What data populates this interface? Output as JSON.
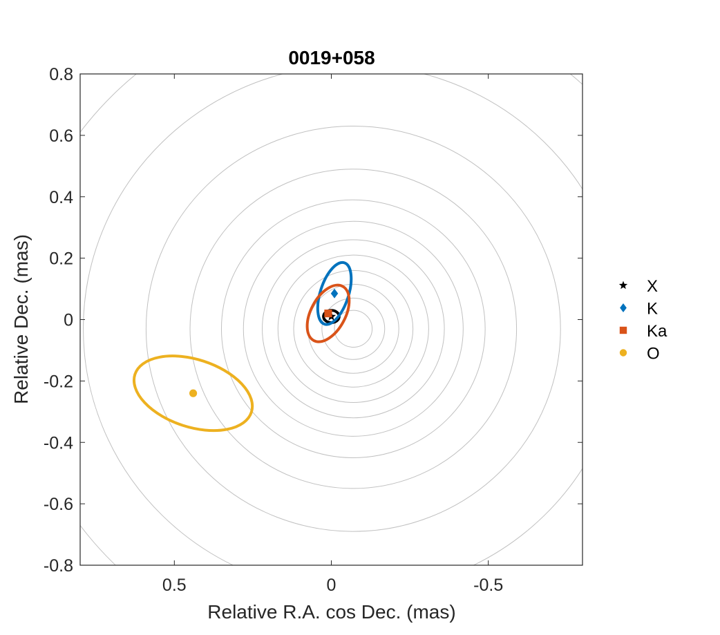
{
  "chart_data": {
    "type": "scatter",
    "title": "0019+058",
    "xlabel": "Relative R.A. cos Dec. (mas)",
    "ylabel": "Relative Dec. (mas)",
    "xlim": [
      0.8,
      -0.8
    ],
    "ylim": [
      -0.8,
      0.8
    ],
    "x_reversed": true,
    "x_ticks": [
      0.5,
      0,
      -0.5
    ],
    "x_tick_labels": [
      "0.5",
      "0",
      "-0.5"
    ],
    "y_ticks": [
      0.8,
      0.6,
      0.4,
      0.2,
      0,
      -0.2,
      -0.4,
      -0.6,
      -0.8
    ],
    "y_tick_labels": [
      "0.8",
      "0.6",
      "0.4",
      "0.2",
      "0",
      "-0.2",
      "-0.4",
      "-0.6",
      "-0.8"
    ],
    "grid": false,
    "legend_position": "outside-right",
    "contours": {
      "color": "#c0c0c0",
      "center": [
        -0.07,
        -0.03
      ],
      "rx": [
        0.06,
        0.1,
        0.145,
        0.19,
        0.24,
        0.29,
        0.35,
        0.42,
        0.52,
        0.66,
        0.86,
        1.08
      ],
      "ry": [
        0.06,
        0.1,
        0.145,
        0.19,
        0.24,
        0.29,
        0.35,
        0.42,
        0.52,
        0.66,
        0.86,
        1.08
      ]
    },
    "series": [
      {
        "name": "X",
        "marker": "star",
        "color": "#000000",
        "x": 0.0,
        "y": 0.01,
        "ellipse": {
          "rx": 0.025,
          "ry": 0.02,
          "angle_deg": 0
        }
      },
      {
        "name": "K",
        "marker": "diamond",
        "color": "#0072bd",
        "x": -0.01,
        "y": 0.085,
        "ellipse": {
          "rx": 0.045,
          "ry": 0.105,
          "angle_deg": 18
        }
      },
      {
        "name": "Ka",
        "marker": "square",
        "color": "#d95319",
        "x": 0.01,
        "y": 0.02,
        "ellipse": {
          "rx": 0.055,
          "ry": 0.1,
          "angle_deg": 28
        }
      },
      {
        "name": "O",
        "marker": "circle",
        "color": "#edb120",
        "x": 0.44,
        "y": -0.24,
        "ellipse": {
          "rx": 0.195,
          "ry": 0.11,
          "angle_deg": 18
        }
      }
    ]
  }
}
